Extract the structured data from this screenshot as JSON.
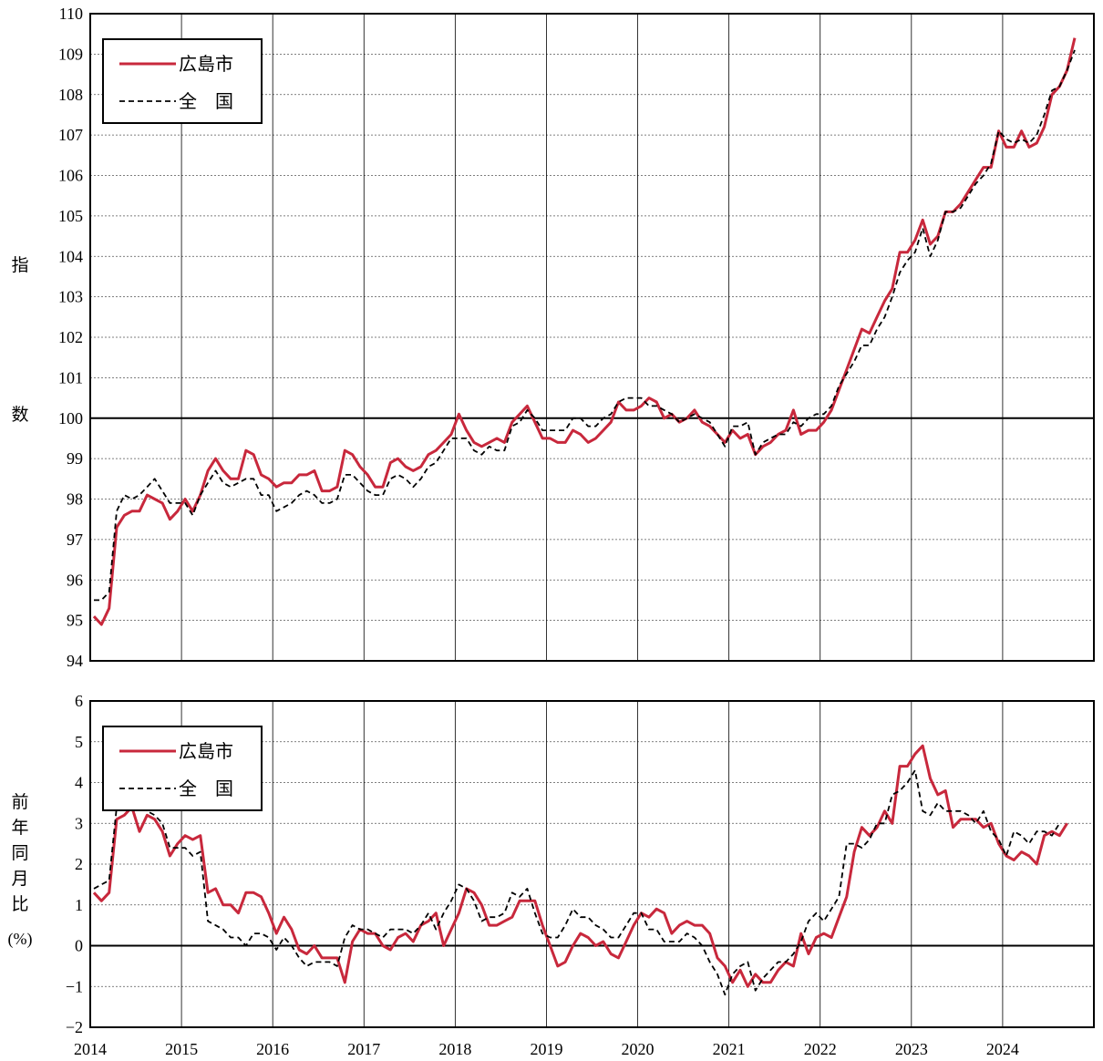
{
  "colors": {
    "hiroshima": "#c8283c",
    "national": "#000000"
  },
  "years": [
    "2014",
    "2015",
    "2016",
    "2017",
    "2018",
    "2019",
    "2020",
    "2021",
    "2022",
    "2023",
    "2024"
  ],
  "chart_data": [
    {
      "type": "line",
      "ylabel_chars": [
        "指",
        "数"
      ],
      "ylim": [
        94,
        110
      ],
      "yticks": [
        94,
        95,
        96,
        97,
        98,
        99,
        100,
        101,
        102,
        103,
        104,
        105,
        106,
        107,
        108,
        109,
        110
      ],
      "reference_line": 100,
      "legend": [
        "広島市",
        "全　国"
      ],
      "legend_position": "top-left",
      "x_start": "2014-01",
      "series": [
        {
          "name": "広島市",
          "style": "solid",
          "values": [
            95.1,
            94.9,
            95.3,
            97.3,
            97.6,
            97.7,
            97.7,
            98.1,
            98.0,
            97.9,
            97.5,
            97.7,
            98.0,
            97.7,
            98.1,
            98.7,
            99.0,
            98.7,
            98.5,
            98.5,
            99.2,
            99.1,
            98.6,
            98.5,
            98.3,
            98.4,
            98.4,
            98.6,
            98.6,
            98.7,
            98.2,
            98.2,
            98.3,
            99.2,
            99.1,
            98.8,
            98.6,
            98.3,
            98.3,
            98.9,
            99.0,
            98.8,
            98.7,
            98.8,
            99.1,
            99.2,
            99.4,
            99.6,
            100.1,
            99.7,
            99.4,
            99.3,
            99.4,
            99.5,
            99.4,
            99.9,
            100.1,
            100.3,
            99.9,
            99.5,
            99.5,
            99.4,
            99.4,
            99.7,
            99.6,
            99.4,
            99.5,
            99.7,
            99.9,
            100.4,
            100.2,
            100.2,
            100.3,
            100.5,
            100.4,
            100.0,
            100.1,
            99.9,
            100.0,
            100.2,
            99.9,
            99.8,
            99.6,
            99.4,
            99.7,
            99.5,
            99.6,
            99.1,
            99.3,
            99.4,
            99.6,
            99.7,
            100.2,
            99.6,
            99.7,
            99.7,
            99.9,
            100.2,
            100.7,
            101.2,
            101.7,
            102.2,
            102.1,
            102.5,
            102.9,
            103.2,
            104.1,
            104.1,
            104.4,
            104.9,
            104.3,
            104.5,
            105.1,
            105.1,
            105.3,
            105.6,
            105.9,
            106.2,
            106.2,
            107.1,
            106.7,
            106.7,
            107.1,
            106.7,
            106.8,
            107.2,
            108.0,
            108.2,
            108.6,
            109.4
          ]
        },
        {
          "name": "全　国",
          "style": "dashed",
          "values": [
            95.5,
            95.5,
            95.7,
            97.7,
            98.1,
            98.0,
            98.1,
            98.3,
            98.5,
            98.2,
            97.9,
            97.9,
            97.9,
            97.6,
            98.1,
            98.4,
            98.7,
            98.4,
            98.3,
            98.4,
            98.5,
            98.5,
            98.1,
            98.1,
            97.7,
            97.8,
            97.9,
            98.1,
            98.2,
            98.1,
            97.9,
            97.9,
            98.0,
            98.6,
            98.6,
            98.4,
            98.2,
            98.1,
            98.1,
            98.5,
            98.6,
            98.5,
            98.3,
            98.5,
            98.8,
            98.9,
            99.2,
            99.5,
            99.5,
            99.5,
            99.2,
            99.1,
            99.3,
            99.2,
            99.2,
            99.8,
            99.9,
            100.2,
            100.0,
            99.7,
            99.7,
            99.7,
            99.7,
            100.0,
            100.0,
            99.8,
            99.8,
            100.0,
            100.1,
            100.4,
            100.5,
            100.5,
            100.5,
            100.3,
            100.3,
            100.2,
            100.1,
            99.9,
            100.0,
            100.1,
            100.0,
            99.9,
            99.6,
            99.3,
            99.8,
            99.8,
            99.9,
            99.1,
            99.4,
            99.5,
            99.6,
            99.6,
            99.9,
            99.8,
            100.0,
            100.1,
            100.1,
            100.3,
            100.8,
            101.1,
            101.4,
            101.8,
            101.8,
            102.2,
            102.5,
            103.0,
            103.6,
            103.9,
            104.1,
            104.7,
            104.0,
            104.4,
            105.1,
            105.1,
            105.2,
            105.5,
            105.8,
            106.0,
            106.3,
            107.1,
            106.9,
            106.8,
            106.9,
            106.8,
            107.0,
            107.5,
            108.1,
            108.2,
            108.6,
            109.1
          ]
        }
      ]
    },
    {
      "type": "line",
      "ylabel_chars": [
        "前",
        "年",
        "同",
        "月",
        "比"
      ],
      "ylabel_unit": "(%)",
      "ylim": [
        -2,
        6
      ],
      "yticks": [
        -2,
        -1,
        0,
        1,
        2,
        3,
        4,
        5,
        6
      ],
      "reference_line": 0,
      "legend": [
        "広島市",
        "全　国"
      ],
      "legend_position": "top-left",
      "x_start": "2014-01",
      "series": [
        {
          "name": "広島市",
          "style": "solid",
          "values": [
            1.3,
            1.1,
            1.3,
            3.1,
            3.2,
            3.4,
            2.8,
            3.2,
            3.1,
            2.8,
            2.2,
            2.5,
            2.7,
            2.6,
            2.7,
            1.3,
            1.4,
            1.0,
            1.0,
            0.8,
            1.3,
            1.3,
            1.2,
            0.8,
            0.3,
            0.7,
            0.4,
            -0.1,
            -0.2,
            0.0,
            -0.3,
            -0.3,
            -0.3,
            -0.9,
            0.1,
            0.4,
            0.3,
            0.3,
            0.0,
            -0.1,
            0.2,
            0.3,
            0.1,
            0.5,
            0.6,
            0.8,
            0.0,
            0.4,
            0.8,
            1.4,
            1.3,
            1.0,
            0.5,
            0.5,
            0.6,
            0.7,
            1.1,
            1.1,
            1.1,
            0.5,
            0.0,
            -0.5,
            -0.4,
            0.0,
            0.3,
            0.2,
            0.0,
            0.1,
            -0.2,
            -0.3,
            0.1,
            0.5,
            0.8,
            0.7,
            0.9,
            0.8,
            0.3,
            0.5,
            0.6,
            0.5,
            0.5,
            0.3,
            -0.3,
            -0.5,
            -0.9,
            -0.6,
            -1.0,
            -0.7,
            -0.9,
            -0.9,
            -0.6,
            -0.4,
            -0.5,
            0.3,
            -0.2,
            0.2,
            0.3,
            0.2,
            0.7,
            1.2,
            2.3,
            2.9,
            2.7,
            2.9,
            3.3,
            3.0,
            4.4,
            4.4,
            4.7,
            4.9,
            4.1,
            3.7,
            3.8,
            2.9,
            3.1,
            3.1,
            3.1,
            2.9,
            3.0,
            2.5,
            2.2,
            2.1,
            2.3,
            2.2,
            2.0,
            2.7,
            2.8,
            2.7,
            3.0
          ]
        },
        {
          "name": "全　国",
          "style": "dashed",
          "values": [
            1.4,
            1.5,
            1.6,
            3.4,
            3.7,
            3.6,
            3.4,
            3.3,
            3.2,
            3.0,
            2.4,
            2.4,
            2.4,
            2.2,
            2.3,
            0.6,
            0.5,
            0.4,
            0.2,
            0.2,
            0.0,
            0.3,
            0.3,
            0.2,
            -0.1,
            0.2,
            0.0,
            -0.3,
            -0.5,
            -0.4,
            -0.4,
            -0.4,
            -0.5,
            0.2,
            0.5,
            0.4,
            0.4,
            0.3,
            0.2,
            0.4,
            0.4,
            0.4,
            0.3,
            0.5,
            0.8,
            0.4,
            0.8,
            1.1,
            1.5,
            1.4,
            1.1,
            0.6,
            0.7,
            0.7,
            0.8,
            1.3,
            1.2,
            1.4,
            0.8,
            0.3,
            0.2,
            0.2,
            0.5,
            0.9,
            0.7,
            0.7,
            0.5,
            0.4,
            0.2,
            0.2,
            0.5,
            0.8,
            0.8,
            0.4,
            0.4,
            0.1,
            0.1,
            0.1,
            0.3,
            0.2,
            0.0,
            -0.4,
            -0.7,
            -1.2,
            -0.7,
            -0.5,
            -0.4,
            -1.1,
            -0.8,
            -0.6,
            -0.4,
            -0.4,
            -0.2,
            0.1,
            0.6,
            0.8,
            0.6,
            0.9,
            1.2,
            2.5,
            2.5,
            2.4,
            2.6,
            3.0,
            3.0,
            3.7,
            3.8,
            4.0,
            4.3,
            3.3,
            3.2,
            3.5,
            3.3,
            3.3,
            3.3,
            3.2,
            3.0,
            3.3,
            2.8,
            2.6,
            2.2,
            2.8,
            2.7,
            2.5,
            2.8,
            2.8,
            2.7,
            3.0
          ]
        }
      ]
    }
  ]
}
